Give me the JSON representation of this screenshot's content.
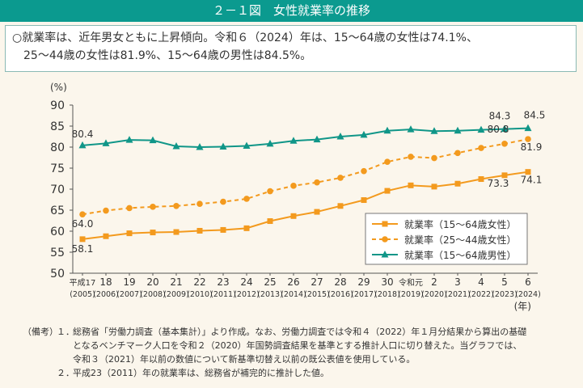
{
  "header": {
    "title": "２－１図　女性就業率の推移"
  },
  "summary": {
    "line1": "○就業率は、近年男女ともに上昇傾向。令和６（2024）年は、15～64歳の女性は74.1%、",
    "line2": "25～44歳の女性は81.9%、15～64歳の男性は84.5%。"
  },
  "chart_data": {
    "type": "line",
    "y_unit": "(%)",
    "x_unit": "(年)",
    "ylim": [
      50,
      90
    ],
    "yticks": [
      "50",
      "55",
      "60",
      "65",
      "70",
      "75",
      "80",
      "85",
      "90"
    ],
    "x_labels_top": [
      "平成17",
      "18",
      "19",
      "20",
      "21",
      "22",
      "23",
      "24",
      "25",
      "26",
      "27",
      "28",
      "29",
      "30",
      "令和元",
      "2",
      "3",
      "4",
      "5",
      "6"
    ],
    "x_labels_bottom": [
      "(2005)",
      "(2006)",
      "(2007)",
      "(2008)",
      "(2009)",
      "(2010)",
      "(2011)",
      "(2012)",
      "(2013)",
      "(2014)",
      "(2015)",
      "(2016)",
      "(2017)",
      "(2018)",
      "(2019)",
      "(2020)",
      "(2021)",
      "(2022)",
      "(2023)",
      "(2024)"
    ],
    "series": [
      {
        "name": "就業率（15～64歳女性）",
        "color": "#f39a1e",
        "dash": false,
        "marker": "square",
        "values": [
          58.1,
          58.8,
          59.5,
          59.7,
          59.8,
          60.1,
          60.3,
          60.7,
          62.4,
          63.6,
          64.6,
          66.0,
          67.4,
          69.6,
          70.9,
          70.6,
          71.3,
          72.4,
          73.3,
          74.1
        ]
      },
      {
        "name": "就業率（25～44歳女性）",
        "color": "#f39a1e",
        "dash": true,
        "marker": "circle",
        "values": [
          64.0,
          64.9,
          65.5,
          65.8,
          66.0,
          66.5,
          67.0,
          67.7,
          69.5,
          70.8,
          71.6,
          72.7,
          74.3,
          76.5,
          77.7,
          77.4,
          78.6,
          79.8,
          80.8,
          81.9
        ]
      },
      {
        "name": "就業率（15～64歳男性）",
        "color": "#109688",
        "dash": false,
        "marker": "triangle",
        "values": [
          80.4,
          80.9,
          81.7,
          81.6,
          80.2,
          80.0,
          80.1,
          80.3,
          80.8,
          81.5,
          81.8,
          82.5,
          82.9,
          83.9,
          84.2,
          83.8,
          83.9,
          84.1,
          84.3,
          84.5
        ]
      }
    ],
    "data_labels": [
      {
        "series": 0,
        "index": 0,
        "text": "58.1"
      },
      {
        "series": 0,
        "index": 18,
        "text": "73.3"
      },
      {
        "series": 0,
        "index": 19,
        "text": "74.1"
      },
      {
        "series": 1,
        "index": 0,
        "text": "64.0"
      },
      {
        "series": 1,
        "index": 18,
        "text": "80.8"
      },
      {
        "series": 1,
        "index": 19,
        "text": "81.9"
      },
      {
        "series": 2,
        "index": 0,
        "text": "80.4"
      },
      {
        "series": 2,
        "index": 18,
        "text": "84.3"
      },
      {
        "series": 2,
        "index": 19,
        "text": "84.5"
      }
    ],
    "legend_position": "lower-right"
  },
  "notes": {
    "label": "（備考）",
    "items": [
      {
        "num": "１．",
        "lines": [
          "総務省「労働力調査（基本集計）」より作成。なお、労働力調査では令和４（2022）年１月分結果から算出の基礎",
          "となるベンチマーク人口を令和２（2020）年国勢調査結果を基準とする推計人口に切り替えた。当グラフでは、",
          "令和３（2021）年以前の数値について新基準切替え以前の既公表値を使用している。"
        ]
      },
      {
        "num": "２．",
        "lines": [
          "平成23（2011）年の就業率は、総務省が補完的に推計した値。"
        ]
      }
    ]
  }
}
